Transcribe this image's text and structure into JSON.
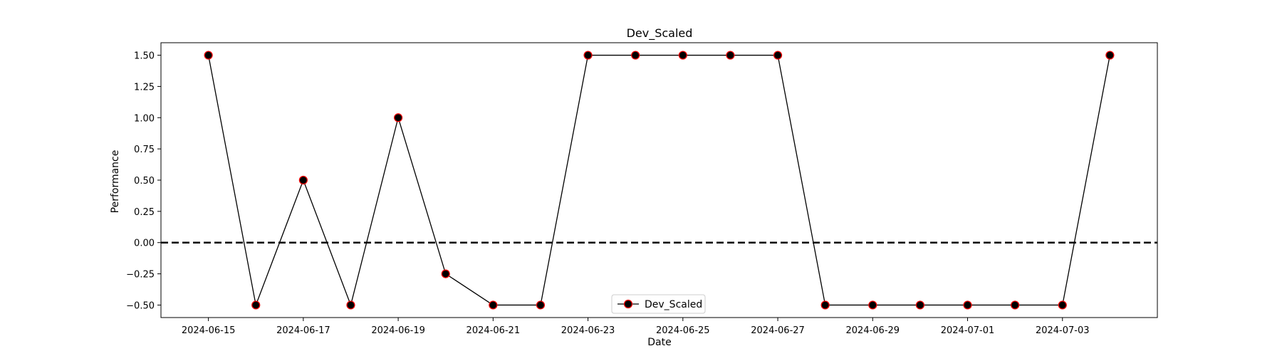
{
  "chart_data": {
    "type": "line",
    "title": "Dev_Scaled",
    "xlabel": "Date",
    "ylabel": "Performance",
    "x": [
      "2024-06-15",
      "2024-06-16",
      "2024-06-17",
      "2024-06-18",
      "2024-06-19",
      "2024-06-20",
      "2024-06-21",
      "2024-06-22",
      "2024-06-23",
      "2024-06-24",
      "2024-06-25",
      "2024-06-26",
      "2024-06-27",
      "2024-06-28",
      "2024-06-29",
      "2024-06-30",
      "2024-07-01",
      "2024-07-02",
      "2024-07-03",
      "2024-07-04"
    ],
    "series": [
      {
        "name": "Dev_Scaled",
        "values": [
          1.5,
          -0.5,
          0.5,
          -0.5,
          1.0,
          -0.25,
          -0.5,
          -0.5,
          1.5,
          1.5,
          1.5,
          1.5,
          1.5,
          -0.5,
          -0.5,
          -0.5,
          -0.5,
          -0.5,
          -0.5,
          1.5
        ],
        "line_color": "#000000",
        "marker_face": "#000000",
        "marker_edge": "#ff0000"
      }
    ],
    "reference_line": {
      "y": 0.0,
      "style": "dashed",
      "color": "#000000"
    },
    "xlim": [
      "2024-06-14",
      "2024-07-05"
    ],
    "ylim": [
      -0.6,
      1.6
    ],
    "x_ticks": [
      "2024-06-15",
      "2024-06-17",
      "2024-06-19",
      "2024-06-21",
      "2024-06-23",
      "2024-06-25",
      "2024-06-27",
      "2024-06-29",
      "2024-07-01",
      "2024-07-03"
    ],
    "y_ticks": [
      "1.50",
      "1.25",
      "1.00",
      "0.75",
      "0.50",
      "0.25",
      "0.00",
      "−0.25",
      "−0.50"
    ],
    "grid": false,
    "legend": {
      "position": "bottom-center",
      "entries": [
        "Dev_Scaled"
      ]
    }
  }
}
